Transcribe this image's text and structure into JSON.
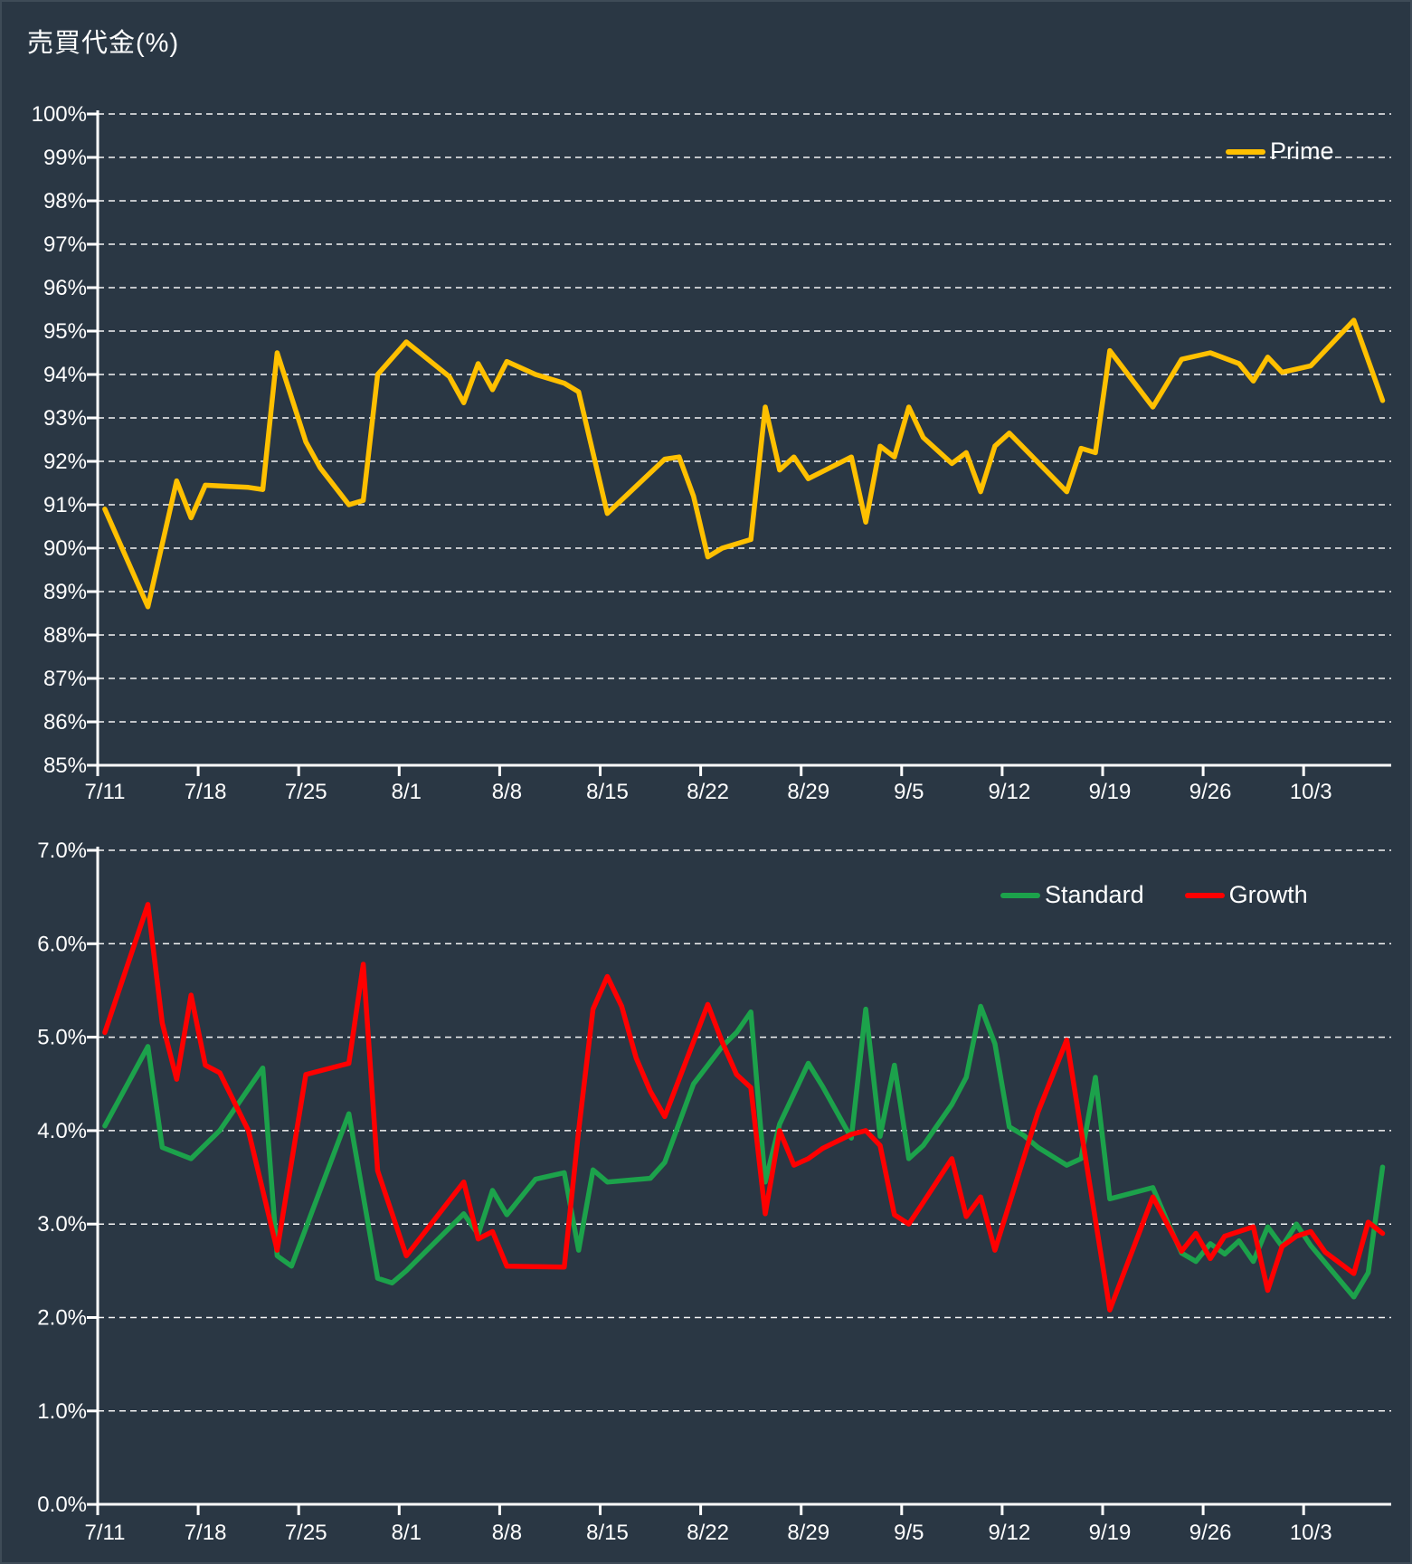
{
  "title": "売買代金(%)",
  "colors": {
    "background": "#2A3744",
    "frame_highlight": "#3E4B57",
    "text": "#FFFFFF",
    "grid": "#FFFFFF",
    "prime": "#FFC000",
    "standard": "#1CA24B",
    "growth": "#FF0000"
  },
  "x_axis": {
    "unit": "day index (0 = 7/11, 1 unit = 1 calendar day)",
    "tick_labels": [
      "7/11",
      "7/18",
      "7/25",
      "8/1",
      "8/8",
      "8/15",
      "8/22",
      "8/29",
      "9/5",
      "9/12",
      "9/19",
      "9/26",
      "10/3"
    ],
    "tick_day_index": [
      0,
      7,
      14,
      21,
      28,
      35,
      42,
      49,
      56,
      63,
      70,
      77,
      84
    ],
    "total_days": 90
  },
  "chart_data": [
    {
      "type": "line",
      "position": "top",
      "ylim": [
        85,
        100
      ],
      "grid": true,
      "legend_position": "top-right",
      "y_tick_labels": [
        "100%",
        "99%",
        "98%",
        "97%",
        "96%",
        "95%",
        "94%",
        "93%",
        "92%",
        "91%",
        "90%",
        "89%",
        "88%",
        "87%",
        "86%",
        "85%"
      ],
      "series": [
        {
          "name": "Prime",
          "color_key": "prime",
          "points": [
            [
              0,
              90.9
            ],
            [
              3,
              88.65
            ],
            [
              5,
              91.55
            ],
            [
              6,
              90.7
            ],
            [
              7,
              91.45
            ],
            [
              10,
              91.4
            ],
            [
              11,
              91.35
            ],
            [
              12,
              94.5
            ],
            [
              14,
              92.45
            ],
            [
              15,
              91.85
            ],
            [
              17,
              91.0
            ],
            [
              18,
              91.1
            ],
            [
              19,
              94.0
            ],
            [
              21,
              94.75
            ],
            [
              24,
              93.95
            ],
            [
              25,
              93.35
            ],
            [
              26,
              94.25
            ],
            [
              27,
              93.65
            ],
            [
              28,
              94.3
            ],
            [
              30,
              94.0
            ],
            [
              32,
              93.8
            ],
            [
              33,
              93.6
            ],
            [
              35,
              90.8
            ],
            [
              39,
              92.05
            ],
            [
              40,
              92.1
            ],
            [
              41,
              91.2
            ],
            [
              42,
              89.8
            ],
            [
              43,
              90.0
            ],
            [
              45,
              90.2
            ],
            [
              46,
              93.25
            ],
            [
              47,
              91.8
            ],
            [
              48,
              92.1
            ],
            [
              49,
              91.6
            ],
            [
              52,
              92.1
            ],
            [
              53,
              90.6
            ],
            [
              54,
              92.35
            ],
            [
              55,
              92.1
            ],
            [
              56,
              93.25
            ],
            [
              57,
              92.55
            ],
            [
              59,
              91.95
            ],
            [
              60,
              92.2
            ],
            [
              61,
              91.3
            ],
            [
              62,
              92.35
            ],
            [
              63,
              92.65
            ],
            [
              67,
              91.3
            ],
            [
              68,
              92.3
            ],
            [
              69,
              92.2
            ],
            [
              70,
              94.55
            ],
            [
              73,
              93.25
            ],
            [
              75,
              94.35
            ],
            [
              77,
              94.5
            ],
            [
              79,
              94.25
            ],
            [
              80,
              93.85
            ],
            [
              81,
              94.4
            ],
            [
              82,
              94.05
            ],
            [
              84,
              94.2
            ],
            [
              87,
              95.25
            ],
            [
              89,
              93.4
            ]
          ]
        }
      ]
    },
    {
      "type": "line",
      "position": "bottom",
      "ylim": [
        0,
        7
      ],
      "grid": true,
      "legend_position": "top-right",
      "y_tick_labels": [
        "7.0%",
        "6.0%",
        "5.0%",
        "4.0%",
        "3.0%",
        "2.0%",
        "1.0%",
        "0.0%"
      ],
      "series": [
        {
          "name": "Standard",
          "color_key": "standard",
          "points": [
            [
              0,
              4.05
            ],
            [
              3,
              4.9
            ],
            [
              4,
              3.82
            ],
            [
              6,
              3.7
            ],
            [
              8,
              4.0
            ],
            [
              11,
              4.67
            ],
            [
              12,
              2.66
            ],
            [
              13,
              2.55
            ],
            [
              17,
              4.18
            ],
            [
              19,
              2.42
            ],
            [
              20,
              2.37
            ],
            [
              21,
              2.5
            ],
            [
              25,
              3.11
            ],
            [
              26,
              2.89
            ],
            [
              27,
              3.36
            ],
            [
              28,
              3.1
            ],
            [
              30,
              3.48
            ],
            [
              32,
              3.55
            ],
            [
              33,
              2.72
            ],
            [
              34,
              3.58
            ],
            [
              35,
              3.45
            ],
            [
              38,
              3.49
            ],
            [
              39,
              3.66
            ],
            [
              41,
              4.5
            ],
            [
              43,
              4.9
            ],
            [
              44,
              5.05
            ],
            [
              45,
              5.27
            ],
            [
              46,
              3.45
            ],
            [
              47,
              4.07
            ],
            [
              49,
              4.72
            ],
            [
              50,
              4.47
            ],
            [
              52,
              3.92
            ],
            [
              53,
              5.3
            ],
            [
              54,
              3.94
            ],
            [
              55,
              4.7
            ],
            [
              56,
              3.7
            ],
            [
              57,
              3.84
            ],
            [
              59,
              4.28
            ],
            [
              60,
              4.57
            ],
            [
              61,
              5.33
            ],
            [
              62,
              4.93
            ],
            [
              63,
              4.04
            ],
            [
              64,
              3.95
            ],
            [
              65,
              3.82
            ],
            [
              67,
              3.63
            ],
            [
              68,
              3.7
            ],
            [
              69,
              4.57
            ],
            [
              70,
              3.27
            ],
            [
              71,
              3.31
            ],
            [
              73,
              3.39
            ],
            [
              74,
              3.03
            ],
            [
              75,
              2.69
            ],
            [
              76,
              2.6
            ],
            [
              77,
              2.79
            ],
            [
              78,
              2.68
            ],
            [
              79,
              2.82
            ],
            [
              80,
              2.6
            ],
            [
              81,
              2.97
            ],
            [
              82,
              2.76
            ],
            [
              83,
              3.0
            ],
            [
              84,
              2.77
            ],
            [
              87,
              2.22
            ],
            [
              88,
              2.48
            ],
            [
              89,
              3.61
            ]
          ]
        },
        {
          "name": "Growth",
          "color_key": "growth",
          "points": [
            [
              0,
              5.05
            ],
            [
              3,
              6.42
            ],
            [
              4,
              5.15
            ],
            [
              5,
              4.55
            ],
            [
              6,
              5.45
            ],
            [
              7,
              4.7
            ],
            [
              8,
              4.62
            ],
            [
              10,
              4.0
            ],
            [
              12,
              2.72
            ],
            [
              14,
              4.6
            ],
            [
              17,
              4.72
            ],
            [
              18,
              5.78
            ],
            [
              19,
              3.57
            ],
            [
              21,
              2.66
            ],
            [
              25,
              3.45
            ],
            [
              26,
              2.84
            ],
            [
              27,
              2.92
            ],
            [
              28,
              2.55
            ],
            [
              32,
              2.54
            ],
            [
              33,
              4.0
            ],
            [
              34,
              5.3
            ],
            [
              35,
              5.65
            ],
            [
              36,
              5.33
            ],
            [
              37,
              4.78
            ],
            [
              38,
              4.42
            ],
            [
              39,
              4.15
            ],
            [
              42,
              5.35
            ],
            [
              43,
              4.95
            ],
            [
              44,
              4.6
            ],
            [
              45,
              4.46
            ],
            [
              46,
              3.11
            ],
            [
              47,
              4.0
            ],
            [
              48,
              3.63
            ],
            [
              49,
              3.7
            ],
            [
              50,
              3.81
            ],
            [
              52,
              3.96
            ],
            [
              53,
              4.0
            ],
            [
              54,
              3.84
            ],
            [
              55,
              3.1
            ],
            [
              56,
              3.0
            ],
            [
              57,
              3.23
            ],
            [
              59,
              3.7
            ],
            [
              60,
              3.08
            ],
            [
              61,
              3.29
            ],
            [
              62,
              2.72
            ],
            [
              65,
              4.2
            ],
            [
              67,
              4.97
            ],
            [
              70,
              2.08
            ],
            [
              73,
              3.29
            ],
            [
              75,
              2.71
            ],
            [
              76,
              2.9
            ],
            [
              77,
              2.63
            ],
            [
              78,
              2.87
            ],
            [
              80,
              2.97
            ],
            [
              81,
              2.29
            ],
            [
              82,
              2.76
            ],
            [
              83,
              2.87
            ],
            [
              84,
              2.92
            ],
            [
              85,
              2.7
            ],
            [
              87,
              2.47
            ],
            [
              88,
              3.02
            ],
            [
              89,
              2.9
            ]
          ]
        }
      ]
    }
  ]
}
